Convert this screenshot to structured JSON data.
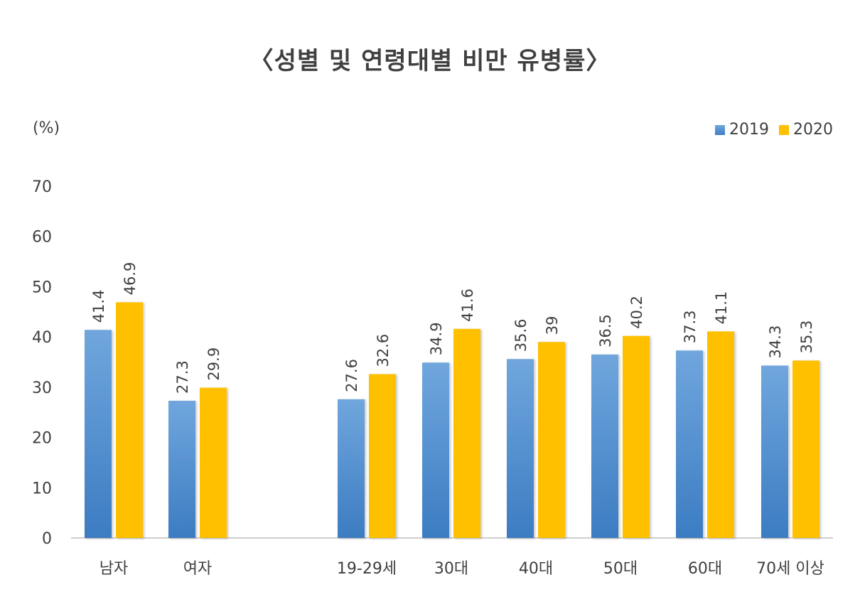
{
  "chart_data": {
    "type": "bar",
    "title": "〈성별 및 연령대별 비만 유병률〉",
    "unit": "(%)",
    "ylim": [
      0,
      70
    ],
    "yticks": [
      0,
      10,
      20,
      30,
      40,
      50,
      60,
      70
    ],
    "grid": false,
    "legend_position": "top-right",
    "categories": [
      "남자",
      "여자",
      "19-29세",
      "30대",
      "40대",
      "50대",
      "60대",
      "70세 이상"
    ],
    "series": [
      {
        "name": "2019",
        "color": "#5B9BD5",
        "values": [
          41.4,
          27.3,
          27.6,
          34.9,
          35.6,
          36.5,
          37.3,
          34.3
        ],
        "labels": [
          "41.4",
          "27.3",
          "27.6",
          "34.9",
          "35.6",
          "36.5",
          "37.3",
          "34.3"
        ]
      },
      {
        "name": "2020",
        "color": "#FFC000",
        "values": [
          46.9,
          29.9,
          32.6,
          41.6,
          39,
          40.2,
          41.1,
          35.3
        ],
        "labels": [
          "46.9",
          "29.9",
          "32.6",
          "41.6",
          "39",
          "40.2",
          "41.1",
          "35.3"
        ]
      }
    ]
  }
}
